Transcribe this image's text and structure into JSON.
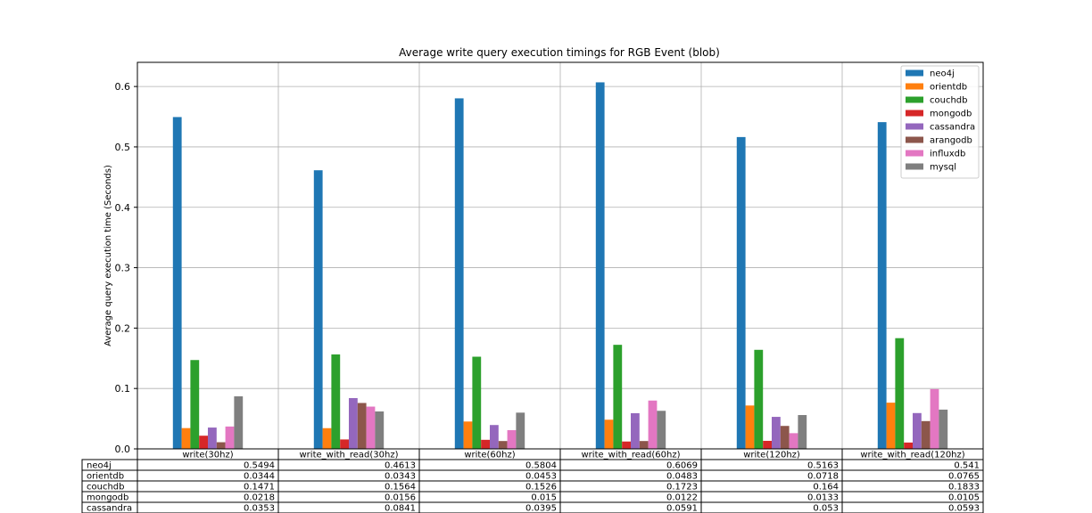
{
  "chart_data": {
    "type": "bar",
    "title": "Average write query execution timings for RGB Event (blob)",
    "xlabel": "",
    "ylabel": "Average query execution time (Seconds)",
    "ylim": [
      0,
      0.64
    ],
    "yticks": [
      0.0,
      0.1,
      0.2,
      0.3,
      0.4,
      0.5,
      0.6
    ],
    "ytick_labels": [
      "0.0",
      "0.1",
      "0.2",
      "0.3",
      "0.4",
      "0.5",
      "0.6"
    ],
    "grid": true,
    "legend_position": "top-right",
    "categories": [
      "write(30hz)",
      "write_with_read(30hz)",
      "write(60hz)",
      "write_with_read(60hz)",
      "write(120hz)",
      "write_with_read(120hz)"
    ],
    "series": [
      {
        "name": "neo4j",
        "color": "#1f77b4",
        "values": [
          0.5494,
          0.4613,
          0.5804,
          0.6069,
          0.5163,
          0.541
        ]
      },
      {
        "name": "orientdb",
        "color": "#ff7f0e",
        "values": [
          0.0344,
          0.0343,
          0.0453,
          0.0483,
          0.0718,
          0.0765
        ]
      },
      {
        "name": "couchdb",
        "color": "#2ca02c",
        "values": [
          0.1471,
          0.1564,
          0.1526,
          0.1723,
          0.164,
          0.1833
        ]
      },
      {
        "name": "mongodb",
        "color": "#d62728",
        "values": [
          0.0218,
          0.0156,
          0.015,
          0.0122,
          0.0133,
          0.0105
        ]
      },
      {
        "name": "cassandra",
        "color": "#9467bd",
        "values": [
          0.0353,
          0.0841,
          0.0395,
          0.0591,
          0.053,
          0.0593
        ]
      },
      {
        "name": "arangodb",
        "color": "#8c564b",
        "values": [
          0.011,
          0.076,
          0.013,
          0.013,
          0.038,
          0.046
        ]
      },
      {
        "name": "influxdb",
        "color": "#e377c2",
        "values": [
          0.037,
          0.07,
          0.031,
          0.08,
          0.026,
          0.099
        ]
      },
      {
        "name": "mysql",
        "color": "#7f7f7f",
        "values": [
          0.087,
          0.062,
          0.06,
          0.063,
          0.056,
          0.065
        ]
      }
    ],
    "table": {
      "col_labels": [
        "write(30hz)",
        "write_with_read(30hz)",
        "write(60hz)",
        "write_with_read(60hz)",
        "write(120hz)",
        "write_with_read(120hz)"
      ],
      "rows": [
        {
          "label": "neo4j",
          "cells": [
            "0.5494",
            "0.4613",
            "0.5804",
            "0.6069",
            "0.5163",
            "0.541"
          ]
        },
        {
          "label": "orientdb",
          "cells": [
            "0.0344",
            "0.0343",
            "0.0453",
            "0.0483",
            "0.0718",
            "0.0765"
          ]
        },
        {
          "label": "couchdb",
          "cells": [
            "0.1471",
            "0.1564",
            "0.1526",
            "0.1723",
            "0.164",
            "0.1833"
          ]
        },
        {
          "label": "mongodb",
          "cells": [
            "0.0218",
            "0.0156",
            "0.015",
            "0.0122",
            "0.0133",
            "0.0105"
          ]
        },
        {
          "label": "cassandra",
          "cells": [
            "0.0353",
            "0.0841",
            "0.0395",
            "0.0591",
            "0.053",
            "0.0593"
          ]
        }
      ]
    }
  }
}
